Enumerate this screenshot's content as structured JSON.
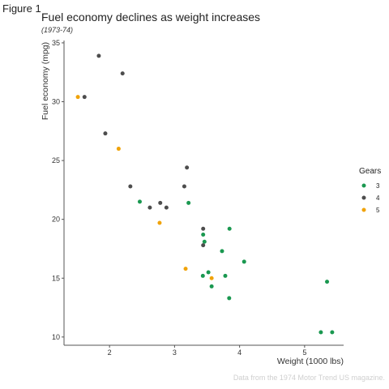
{
  "figure_label": "Figure 1",
  "caption": "Data from the 1974 Motor Trend US magazine.",
  "colors": {
    "gear_3": "#1a9850",
    "gear_4": "#4d4d4d",
    "gear_5": "#f0a30a",
    "axis": "#555555",
    "text": "#222222",
    "caption": "#cfcfcf"
  },
  "chart_data": {
    "type": "scatter",
    "title": "Fuel economy declines as weight increases",
    "subtitle": "(1973-74)",
    "xlabel": "Weight (1000 lbs)",
    "ylabel": "Fuel economy (mpg)",
    "xlim": [
      1.3,
      5.6
    ],
    "ylim": [
      9.3,
      35.2
    ],
    "xticks": [
      2,
      3,
      4,
      5
    ],
    "yticks": [
      10,
      15,
      20,
      25,
      30,
      35
    ],
    "grid": false,
    "legend": {
      "title": "Gears",
      "position": "right"
    },
    "series": [
      {
        "name": "3",
        "color": "#1a9850",
        "points": [
          [
            2.465,
            21.5
          ],
          [
            3.215,
            21.4
          ],
          [
            3.44,
            18.7
          ],
          [
            3.46,
            18.1
          ],
          [
            3.57,
            14.3
          ],
          [
            4.07,
            16.4
          ],
          [
            3.73,
            17.3
          ],
          [
            3.78,
            15.2
          ],
          [
            5.25,
            10.4
          ],
          [
            5.424,
            10.4
          ],
          [
            5.345,
            14.7
          ],
          [
            3.52,
            15.5
          ],
          [
            3.435,
            15.2
          ],
          [
            3.84,
            13.3
          ],
          [
            3.845,
            19.2
          ]
        ]
      },
      {
        "name": "4",
        "color": "#4d4d4d",
        "points": [
          [
            2.62,
            21.0
          ],
          [
            2.875,
            21.0
          ],
          [
            2.32,
            22.8
          ],
          [
            3.19,
            24.4
          ],
          [
            3.15,
            22.8
          ],
          [
            3.44,
            19.2
          ],
          [
            3.44,
            17.8
          ],
          [
            2.2,
            32.4
          ],
          [
            1.615,
            30.4
          ],
          [
            1.835,
            33.9
          ],
          [
            1.935,
            27.3
          ],
          [
            2.78,
            21.4
          ]
        ]
      },
      {
        "name": "5",
        "color": "#f0a30a",
        "points": [
          [
            2.14,
            26.0
          ],
          [
            1.513,
            30.4
          ],
          [
            3.17,
            15.8
          ],
          [
            2.77,
            19.7
          ],
          [
            3.57,
            15.0
          ]
        ]
      }
    ]
  }
}
